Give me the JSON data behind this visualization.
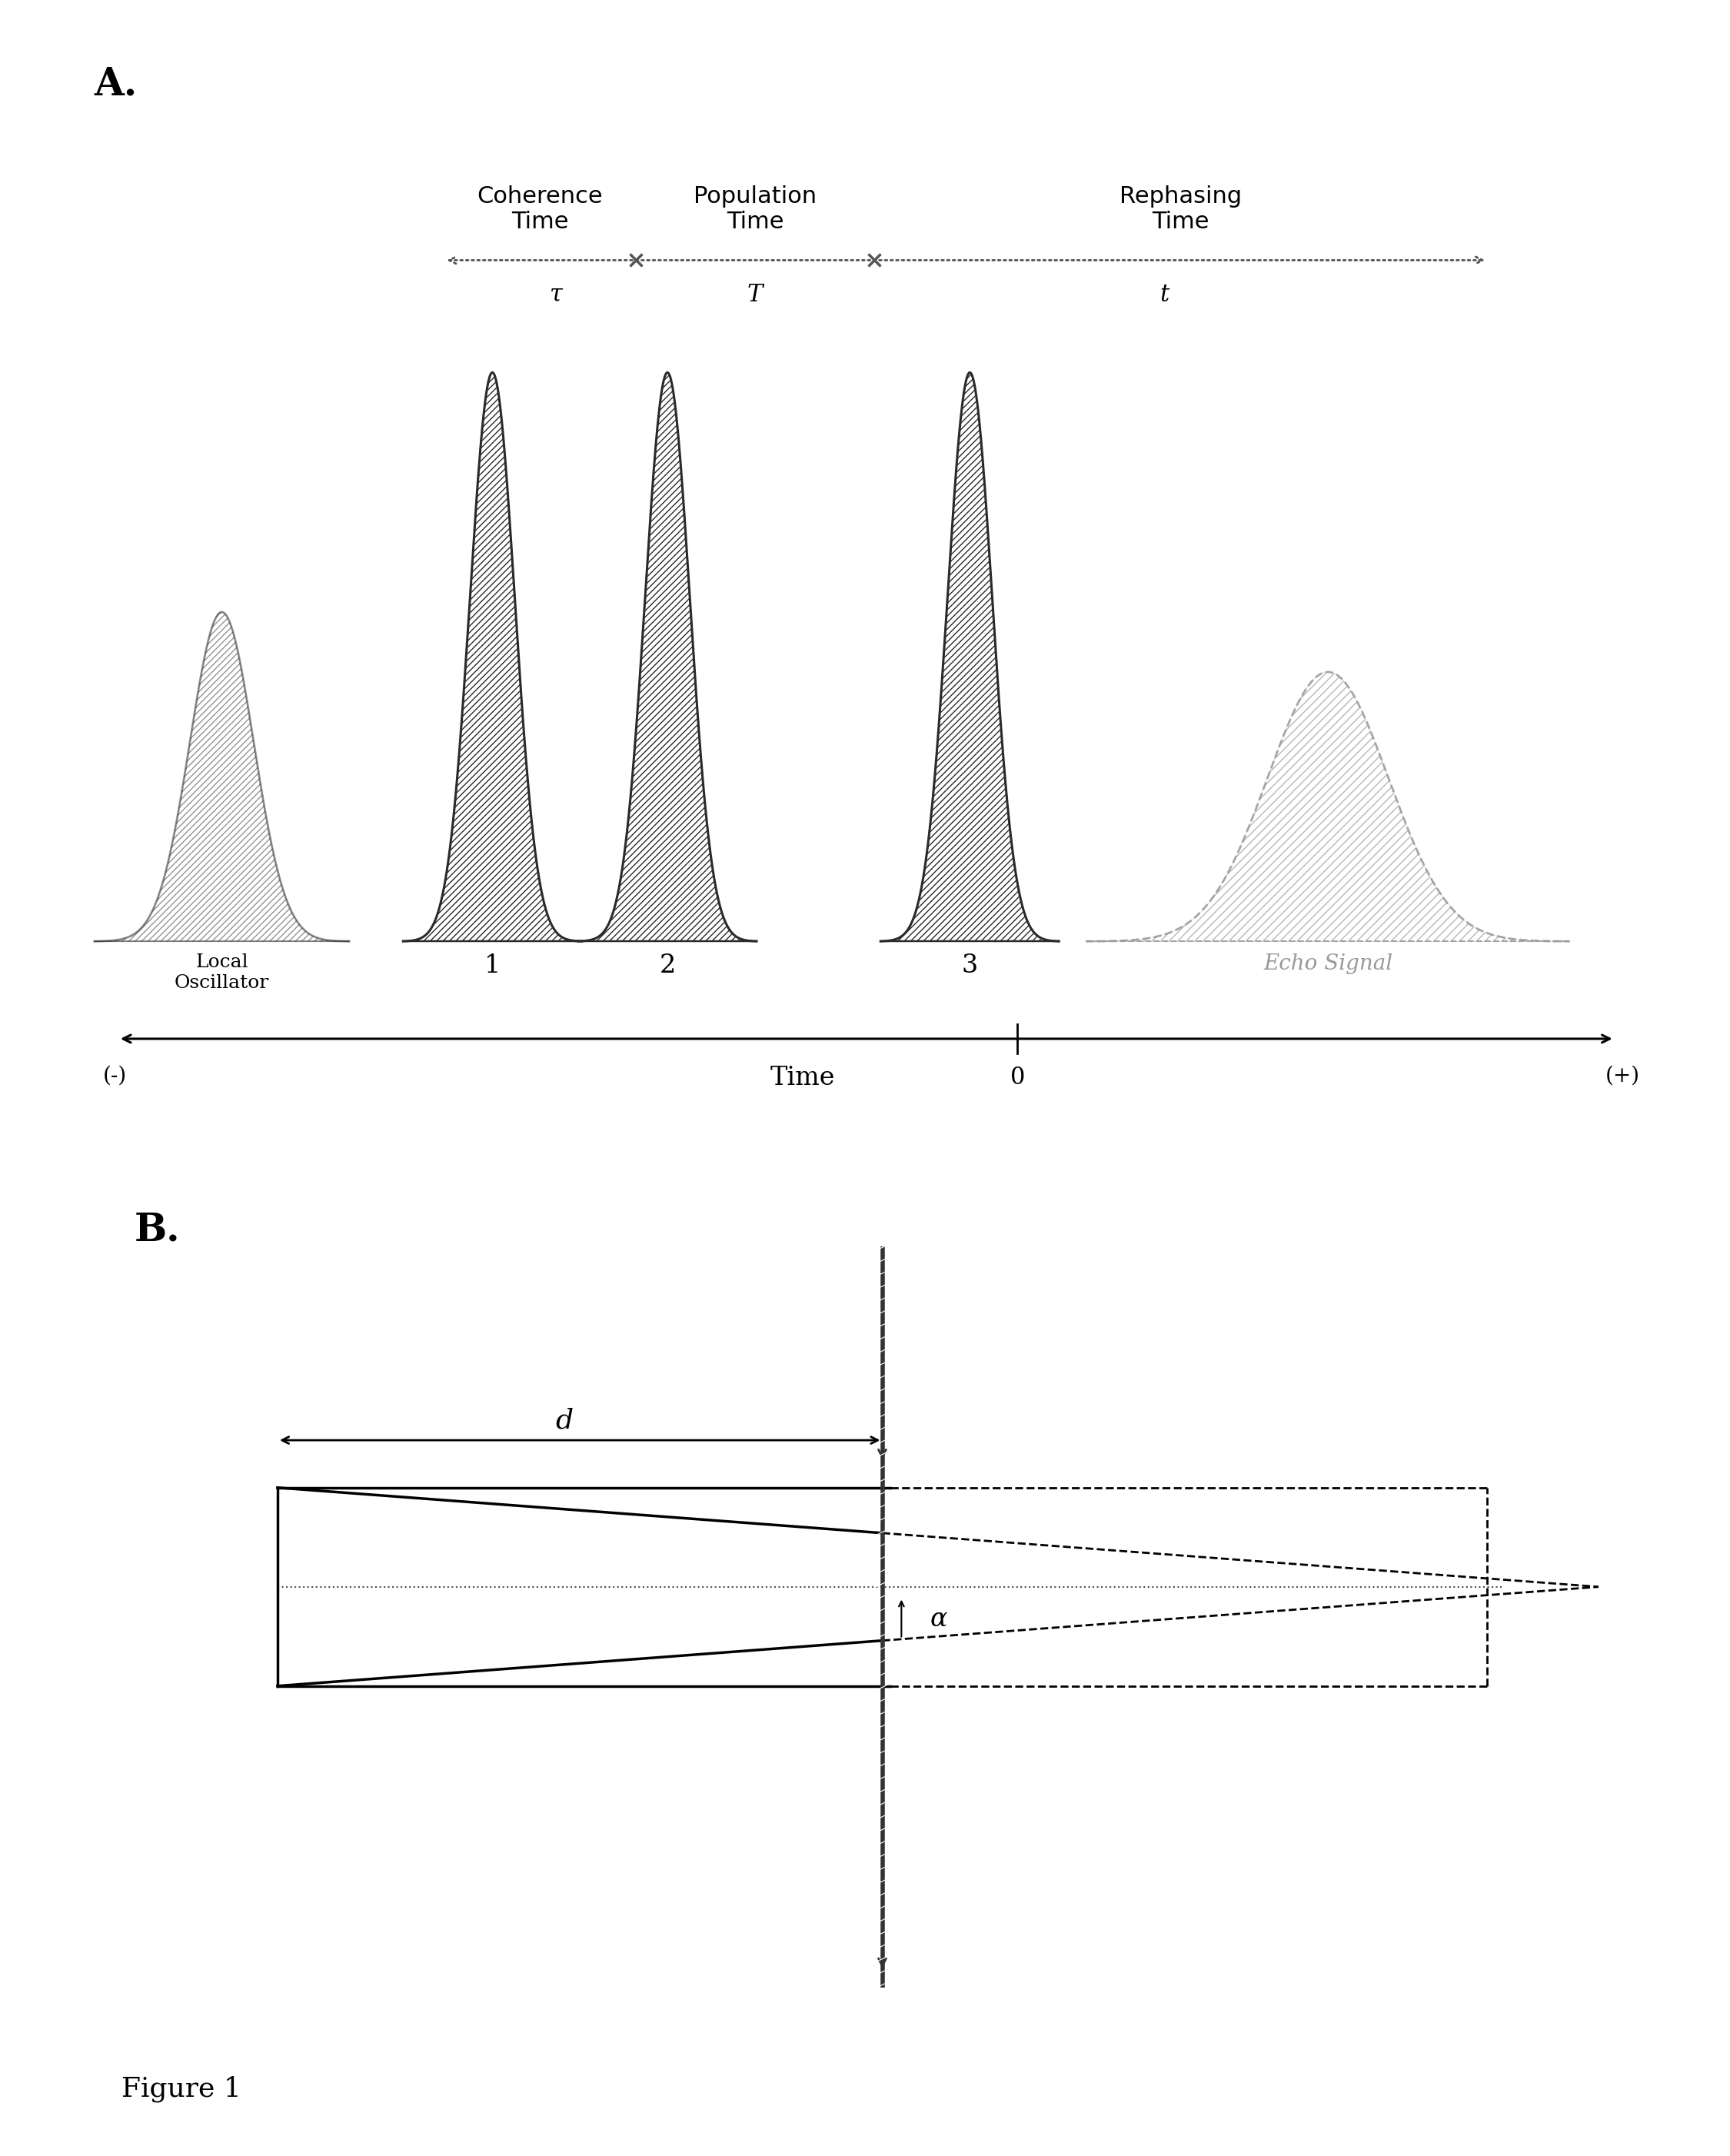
{
  "fig_width": 22.5,
  "fig_height": 28.04,
  "bg_color": "#ffffff",
  "panel_A_label": "A.",
  "panel_B_label": "B.",
  "figure_label": "Figure 1",
  "coherence_time_label": "Coherence\nTime",
  "population_time_label": "Population\nTime",
  "rephasing_time_label": "Rephasing\nTime",
  "time_label": "Time",
  "tau_label": "τ",
  "T_label": "T",
  "t_label": "t",
  "lo_label": "Local\nOscillator",
  "pulse1_label": "1",
  "pulse2_label": "2",
  "pulse3_label": "3",
  "echo_label": "Echo Signal",
  "minus_label": "(-)",
  "plus_label": "(+)",
  "zero_label": "0",
  "d_label": "d",
  "alpha_label": "α",
  "pulse_color": "#2a2a2a",
  "echo_color": "#999999",
  "arrow_color": "#555555",
  "beam_color": "#333333"
}
